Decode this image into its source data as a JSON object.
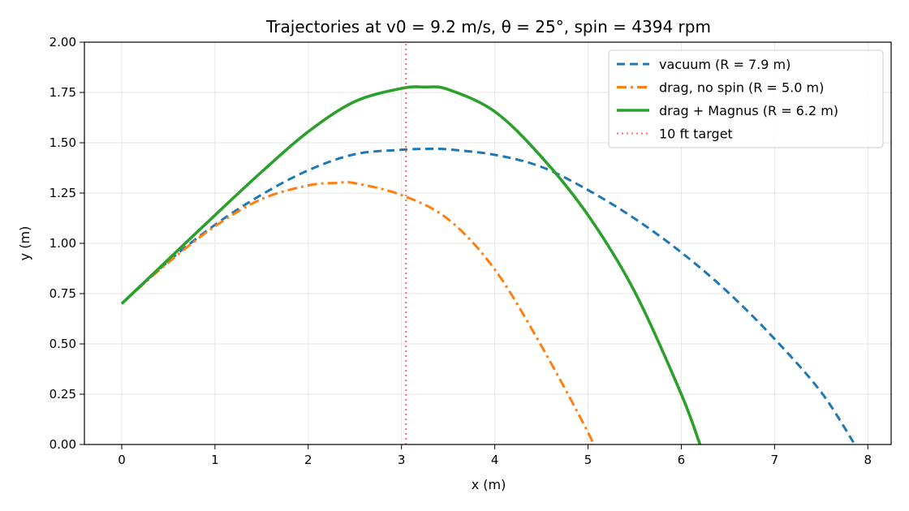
{
  "chart_data": {
    "type": "line",
    "title": "Trajectories at v0 = 9.2 m/s, θ = 25°, spin = 4394 rpm",
    "xlabel": "x (m)",
    "ylabel": "y (m)",
    "xlim": [
      -0.4,
      8.25
    ],
    "ylim": [
      0,
      2
    ],
    "xticks": [
      0,
      1,
      2,
      3,
      4,
      5,
      6,
      7,
      8
    ],
    "yticks": [
      "0.00",
      "0.25",
      "0.50",
      "0.75",
      "1.00",
      "1.25",
      "1.50",
      "1.75",
      "2.00"
    ],
    "grid": true,
    "legend_position": "top-right",
    "series": [
      {
        "name": "vacuum (R = 7.9 m)",
        "color": "#1f77b4",
        "style": "dashed",
        "points": [
          [
            0,
            0.7
          ],
          [
            0.5,
            0.911
          ],
          [
            1,
            1.092
          ],
          [
            1.5,
            1.242
          ],
          [
            2,
            1.363
          ],
          [
            2.5,
            1.443
          ],
          [
            3,
            1.465
          ],
          [
            3.3,
            1.47
          ],
          [
            3.5,
            1.467
          ],
          [
            4,
            1.44
          ],
          [
            4.5,
            1.38
          ],
          [
            5,
            1.265
          ],
          [
            5.5,
            1.123
          ],
          [
            6,
            0.955
          ],
          [
            6.5,
            0.757
          ],
          [
            7,
            0.525
          ],
          [
            7.5,
            0.26
          ],
          [
            7.86,
            0
          ]
        ]
      },
      {
        "name": "drag, no spin (R = 5.0 m)",
        "color": "#ff7f0e",
        "style": "dashdot",
        "points": [
          [
            0,
            0.7
          ],
          [
            0.5,
            0.905
          ],
          [
            1,
            1.085
          ],
          [
            1.5,
            1.22
          ],
          [
            2,
            1.288
          ],
          [
            2.3,
            1.3
          ],
          [
            2.5,
            1.299
          ],
          [
            3,
            1.24
          ],
          [
            3.5,
            1.12
          ],
          [
            4,
            0.87
          ],
          [
            4.5,
            0.49
          ],
          [
            5,
            0.06
          ],
          [
            5.04,
            0
          ]
        ]
      },
      {
        "name": "drag + Magnus (R = 6.2 m)",
        "color": "#2ca02c",
        "style": "solid",
        "points": [
          [
            0,
            0.7
          ],
          [
            0.5,
            0.92
          ],
          [
            1,
            1.14
          ],
          [
            1.5,
            1.355
          ],
          [
            2,
            1.555
          ],
          [
            2.5,
            1.705
          ],
          [
            3,
            1.77
          ],
          [
            3.25,
            1.777
          ],
          [
            3.5,
            1.765
          ],
          [
            4,
            1.655
          ],
          [
            4.5,
            1.43
          ],
          [
            5,
            1.14
          ],
          [
            5.5,
            0.76
          ],
          [
            6,
            0.25
          ],
          [
            6.2,
            0
          ]
        ]
      },
      {
        "name": "10 ft target",
        "color": "#ff5555",
        "style": "dotted",
        "points": [
          [
            3.048,
            0
          ],
          [
            3.048,
            2
          ]
        ]
      }
    ]
  }
}
